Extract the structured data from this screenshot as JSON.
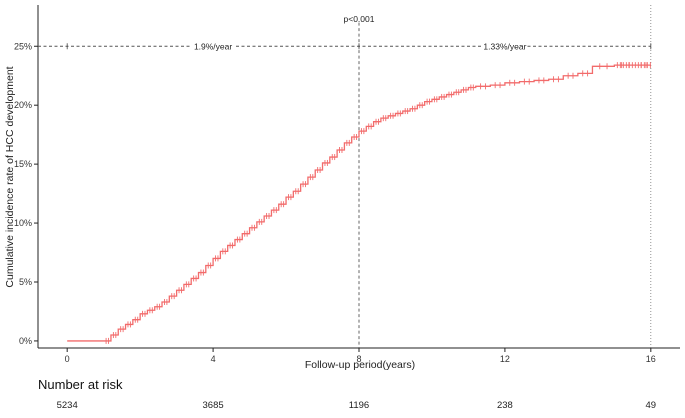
{
  "chart_data": {
    "type": "line",
    "xlabel": "Follow-up period(years)",
    "ylabel": "Cumulative incidence rate of HCC development",
    "x_ticks": [
      0,
      4,
      8,
      12,
      16
    ],
    "y_ticks": [
      "0%",
      "5%",
      "10%",
      "15%",
      "20%",
      "25%"
    ],
    "xlim": [
      -0.8,
      16.8
    ],
    "ylim": [
      -0.6,
      28.5
    ],
    "grid": false,
    "series": [
      {
        "color": "#f26b6b",
        "x": [
          0,
          1.0,
          1.2,
          1.4,
          1.6,
          1.8,
          2.0,
          2.2,
          2.4,
          2.6,
          2.8,
          3.0,
          3.2,
          3.4,
          3.6,
          3.8,
          4.0,
          4.2,
          4.4,
          4.6,
          4.8,
          5.0,
          5.2,
          5.4,
          5.6,
          5.8,
          6.0,
          6.2,
          6.4,
          6.6,
          6.8,
          7.0,
          7.2,
          7.4,
          7.6,
          7.8,
          8.0,
          8.2,
          8.4,
          8.6,
          8.8,
          9.0,
          9.2,
          9.4,
          9.6,
          9.8,
          10.0,
          10.2,
          10.4,
          10.6,
          10.8,
          11.0,
          11.2,
          11.6,
          12.0,
          12.4,
          12.8,
          13.2,
          13.6,
          14.0,
          14.4,
          15.0,
          15.6,
          16.0
        ],
        "values": [
          0,
          0.0,
          0.5,
          1.0,
          1.4,
          1.8,
          2.3,
          2.6,
          2.9,
          3.3,
          3.8,
          4.3,
          4.8,
          5.3,
          5.8,
          6.4,
          7.0,
          7.6,
          8.1,
          8.6,
          9.1,
          9.6,
          10.1,
          10.6,
          11.1,
          11.6,
          12.2,
          12.7,
          13.3,
          13.9,
          14.5,
          15.1,
          15.6,
          16.2,
          16.8,
          17.3,
          17.8,
          18.2,
          18.6,
          18.9,
          19.1,
          19.3,
          19.5,
          19.7,
          20.0,
          20.3,
          20.5,
          20.7,
          20.9,
          21.1,
          21.3,
          21.5,
          21.6,
          21.7,
          21.9,
          22.0,
          22.1,
          22.2,
          22.5,
          22.7,
          23.3,
          23.4,
          23.4,
          23.4
        ]
      }
    ],
    "reference": {
      "y": 25,
      "x_break": 8,
      "x_end": 16
    },
    "annotations": [
      {
        "text": "p<0.001",
        "x": 8,
        "y": 27.3
      },
      {
        "text": "1.9%/year",
        "x": 4,
        "y": 25
      },
      {
        "text": "1.33%/year",
        "x": 12,
        "y": 25
      }
    ]
  },
  "risk_table": {
    "title": "Number at risk",
    "x": [
      0,
      4,
      8,
      12,
      16
    ],
    "values": [
      "5234",
      "3685",
      "1196",
      "238",
      "49"
    ]
  }
}
